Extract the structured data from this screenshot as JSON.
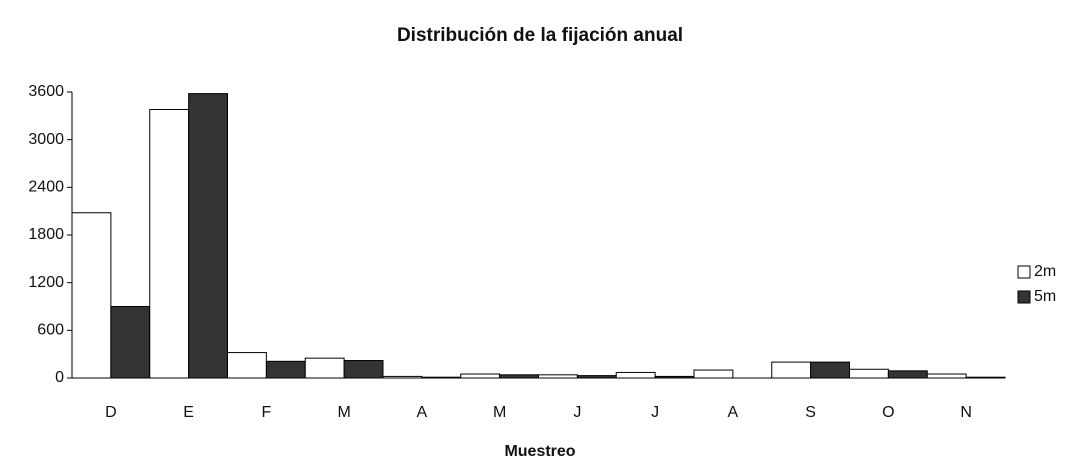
{
  "chart_data": {
    "type": "bar",
    "title": "Distribución de la fijación anual",
    "x_label": "Muestreo",
    "categories": [
      "D",
      "E",
      "F",
      "M",
      "A",
      "M",
      "J",
      "J",
      "A",
      "S",
      "O",
      "N"
    ],
    "series": [
      {
        "name": "2m",
        "color": "#ffffff",
        "values": [
          2080,
          3380,
          320,
          250,
          20,
          50,
          40,
          70,
          100,
          200,
          110,
          50
        ]
      },
      {
        "name": "5m",
        "color": "#333333",
        "values": [
          900,
          3580,
          210,
          220,
          10,
          40,
          30,
          20,
          0,
          200,
          90,
          10
        ]
      }
    ],
    "ylim": [
      0,
      3600
    ],
    "yticks": [
      0,
      600,
      1200,
      1800,
      2400,
      3000,
      3600
    ],
    "grid": false,
    "legend": "right"
  }
}
